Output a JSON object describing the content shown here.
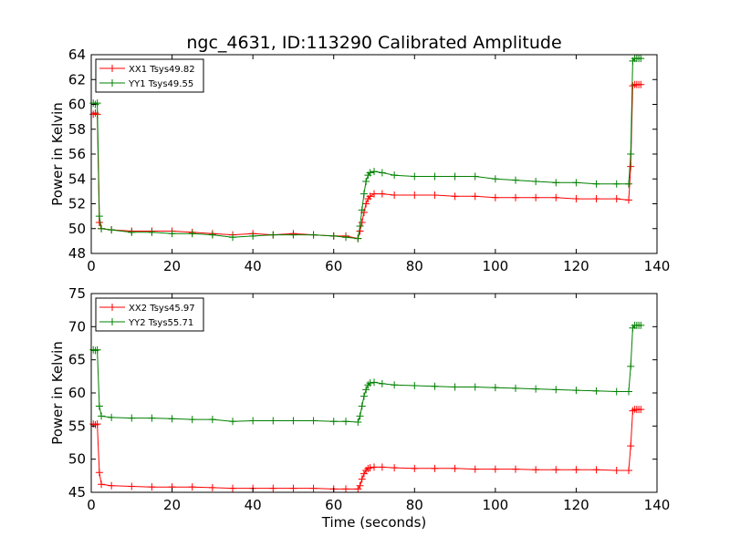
{
  "figure": {
    "title": "ngc_4631, ID:113290 Calibrated Amplitude",
    "colors": {
      "XX": "#ff0000",
      "YY": "#008000"
    }
  },
  "chart_data": [
    {
      "type": "line",
      "marker": "+",
      "title": "ngc_4631, ID:113290 Calibrated Amplitude",
      "xlabel": "",
      "ylabel": "Power in Kelvin",
      "xlim": [
        0,
        140
      ],
      "ylim": [
        48,
        64
      ],
      "xticks": [
        "0",
        "20",
        "40",
        "60",
        "80",
        "100",
        "120",
        "140"
      ],
      "yticks": [
        "48",
        "50",
        "52",
        "54",
        "56",
        "58",
        "60",
        "62",
        "64"
      ],
      "grid": false,
      "legend_position": "top-left",
      "series": [
        {
          "name": "XX1 Tsys49.82",
          "color": "#ff0000",
          "x": [
            0.5,
            1.0,
            1.5,
            2.0,
            2.5,
            5,
            10,
            15,
            20,
            25,
            30,
            35,
            40,
            45,
            50,
            55,
            60,
            63,
            66,
            66.5,
            67,
            67.5,
            68,
            68.5,
            69,
            70,
            72,
            75,
            80,
            85,
            90,
            95,
            100,
            105,
            110,
            115,
            120,
            125,
            130,
            133,
            133.5,
            134,
            134.5,
            135,
            135.5,
            136
          ],
          "y": [
            59.2,
            59.3,
            59.2,
            50.5,
            50.0,
            49.9,
            49.8,
            49.8,
            49.8,
            49.7,
            49.6,
            49.5,
            49.6,
            49.5,
            49.6,
            49.5,
            49.4,
            49.4,
            49.2,
            49.8,
            50.5,
            51.3,
            52.0,
            52.4,
            52.6,
            52.8,
            52.8,
            52.7,
            52.7,
            52.7,
            52.6,
            52.6,
            52.5,
            52.5,
            52.5,
            52.5,
            52.4,
            52.4,
            52.4,
            52.3,
            55.0,
            61.5,
            61.6,
            61.6,
            61.6,
            61.6
          ]
        },
        {
          "name": "YY1 Tsys49.55",
          "color": "#008000",
          "x": [
            0.5,
            1.0,
            1.5,
            2.0,
            2.5,
            5,
            10,
            15,
            20,
            25,
            30,
            35,
            40,
            45,
            50,
            55,
            60,
            63,
            66,
            66.5,
            67,
            67.5,
            68,
            68.5,
            69,
            70,
            72,
            75,
            80,
            85,
            90,
            95,
            100,
            105,
            110,
            115,
            120,
            125,
            130,
            133,
            133.5,
            134,
            134.5,
            135,
            135.5,
            136
          ],
          "y": [
            60.1,
            60.0,
            60.1,
            51.0,
            50.0,
            49.9,
            49.7,
            49.7,
            49.6,
            49.6,
            49.5,
            49.3,
            49.4,
            49.5,
            49.5,
            49.5,
            49.4,
            49.3,
            49.2,
            50.2,
            51.5,
            52.8,
            53.8,
            54.3,
            54.5,
            54.6,
            54.5,
            54.3,
            54.2,
            54.2,
            54.2,
            54.2,
            54.0,
            53.9,
            53.8,
            53.7,
            53.7,
            53.6,
            53.6,
            53.6,
            56.0,
            63.5,
            63.7,
            63.7,
            63.7,
            63.7
          ]
        }
      ]
    },
    {
      "type": "line",
      "marker": "+",
      "title": "",
      "xlabel": "Time (seconds)",
      "ylabel": "Power in Kelvin",
      "xlim": [
        0,
        140
      ],
      "ylim": [
        45,
        75
      ],
      "xticks": [
        "0",
        "20",
        "40",
        "60",
        "80",
        "100",
        "120",
        "140"
      ],
      "yticks": [
        "45",
        "50",
        "55",
        "60",
        "65",
        "70",
        "75"
      ],
      "grid": false,
      "legend_position": "top-left",
      "series": [
        {
          "name": "XX2 Tsys45.97",
          "color": "#ff0000",
          "x": [
            0.5,
            1.0,
            1.5,
            2.0,
            2.5,
            5,
            10,
            15,
            20,
            25,
            30,
            35,
            40,
            45,
            50,
            55,
            60,
            63,
            66,
            66.5,
            67,
            67.5,
            68,
            68.5,
            69,
            70,
            72,
            75,
            80,
            85,
            90,
            95,
            100,
            105,
            110,
            115,
            120,
            125,
            130,
            133,
            133.5,
            134,
            134.5,
            135,
            135.5,
            136
          ],
          "y": [
            55.3,
            55.2,
            55.3,
            48.0,
            46.2,
            46.0,
            45.9,
            45.8,
            45.8,
            45.8,
            45.7,
            45.6,
            45.6,
            45.6,
            45.6,
            45.6,
            45.5,
            45.5,
            45.5,
            46.0,
            47.0,
            47.8,
            48.3,
            48.6,
            48.7,
            48.8,
            48.8,
            48.7,
            48.6,
            48.6,
            48.6,
            48.5,
            48.5,
            48.5,
            48.4,
            48.4,
            48.4,
            48.4,
            48.3,
            48.3,
            52.0,
            57.3,
            57.5,
            57.5,
            57.5,
            57.5
          ]
        },
        {
          "name": "YY2 Tsys55.71",
          "color": "#008000",
          "x": [
            0.5,
            1.0,
            1.5,
            2.0,
            2.5,
            5,
            10,
            15,
            20,
            25,
            30,
            35,
            40,
            45,
            50,
            55,
            60,
            63,
            66,
            66.5,
            67,
            67.5,
            68,
            68.5,
            69,
            70,
            72,
            75,
            80,
            85,
            90,
            95,
            100,
            105,
            110,
            115,
            120,
            125,
            130,
            133,
            133.5,
            134,
            134.5,
            135,
            135.5,
            136
          ],
          "y": [
            66.5,
            66.4,
            66.5,
            58.0,
            56.5,
            56.3,
            56.2,
            56.2,
            56.1,
            56.0,
            56.0,
            55.7,
            55.8,
            55.8,
            55.8,
            55.8,
            55.7,
            55.7,
            55.6,
            56.5,
            58.0,
            59.5,
            60.5,
            61.2,
            61.5,
            61.6,
            61.4,
            61.2,
            61.1,
            61.0,
            60.9,
            60.9,
            60.8,
            60.7,
            60.6,
            60.5,
            60.4,
            60.3,
            60.2,
            60.2,
            64.0,
            69.8,
            70.2,
            70.2,
            70.2,
            70.2
          ]
        }
      ]
    }
  ]
}
